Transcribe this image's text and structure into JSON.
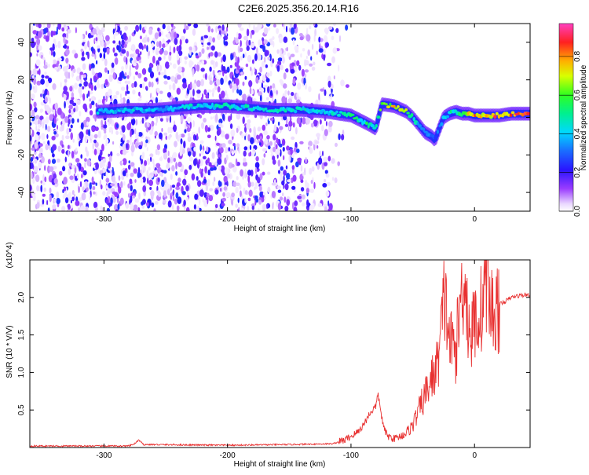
{
  "title": "C2E6.2025.356.20.14.R16",
  "chart_data": [
    {
      "type": "heatmap",
      "xlabel": "Height of straight line (km)",
      "ylabel": "Frequency (Hz)",
      "xlim": [
        -360,
        45
      ],
      "ylim": [
        -50,
        50
      ],
      "xticks": [
        -300,
        -200,
        -100,
        0
      ],
      "yticks": [
        -40,
        -20,
        0,
        20,
        40
      ],
      "colorbar": {
        "label": "Normalized spectral amplitude",
        "range": [
          0,
          0.97
        ],
        "ticks": [
          0.0,
          0.2,
          0.4,
          0.6,
          0.8
        ]
      },
      "ridge": {
        "x": [
          -305,
          -280,
          -260,
          -240,
          -220,
          -200,
          -180,
          -160,
          -140,
          -120,
          -100,
          -85,
          -80,
          -75,
          -65,
          -55,
          -50,
          -45,
          -40,
          -35,
          -32,
          -28,
          -25,
          -20,
          -15,
          -10,
          -5,
          0,
          10,
          20,
          30,
          45
        ],
        "y": [
          3,
          4,
          4,
          5,
          6,
          6,
          5,
          4,
          4,
          3,
          1,
          -4,
          -6,
          7,
          6,
          3,
          0,
          -4,
          -8,
          -10,
          -12,
          -5,
          0,
          2,
          3,
          2,
          2,
          1,
          1,
          1,
          2,
          2
        ],
        "amplitude": [
          0.45,
          0.45,
          0.45,
          0.45,
          0.5,
          0.5,
          0.5,
          0.5,
          0.5,
          0.5,
          0.55,
          0.55,
          0.5,
          0.75,
          0.8,
          0.7,
          0.5,
          0.45,
          0.4,
          0.35,
          0.3,
          0.4,
          0.45,
          0.5,
          0.6,
          0.7,
          0.8,
          0.85,
          0.9,
          0.9,
          0.95,
          0.95
        ]
      }
    },
    {
      "type": "line",
      "xlabel": "Height of straight line (km)",
      "ylabel": "SNR (10 * V/V)",
      "yscale_label": "(x10^4)",
      "xlim": [
        -360,
        45
      ],
      "ylim": [
        0,
        2.5
      ],
      "xticks": [
        -300,
        -200,
        -100,
        0
      ],
      "yticks": [
        0.5,
        1.0,
        1.5,
        2.0
      ],
      "series": [
        {
          "color": "#e83030",
          "x": [
            -360,
            -280,
            -275,
            -272,
            -268,
            -200,
            -150,
            -115,
            -105,
            -100,
            -95,
            -90,
            -85,
            -80,
            -78,
            -76,
            -74,
            -72,
            -70,
            -65,
            -60,
            -55,
            -50,
            -45,
            -40,
            -35,
            -30,
            -28,
            -26,
            -25,
            -24,
            -20,
            -15,
            -12,
            -10,
            -8,
            -5,
            -2,
            0,
            5,
            10,
            12,
            15,
            20,
            25,
            30,
            35,
            40,
            45
          ],
          "y": [
            0.02,
            0.02,
            0.05,
            0.1,
            0.04,
            0.03,
            0.04,
            0.05,
            0.1,
            0.15,
            0.2,
            0.3,
            0.45,
            0.55,
            0.7,
            0.5,
            0.3,
            0.2,
            0.15,
            0.12,
            0.15,
            0.2,
            0.3,
            0.5,
            0.7,
            0.9,
            1.1,
            1.4,
            1.7,
            1.9,
            2.0,
            1.4,
            1.3,
            1.8,
            2.1,
            2.4,
            1.6,
            1.5,
            1.7,
            1.8,
            2.4,
            1.9,
            1.8,
            1.9,
            1.95,
            2.0,
            2.02,
            2.03,
            2.04
          ]
        }
      ]
    }
  ]
}
